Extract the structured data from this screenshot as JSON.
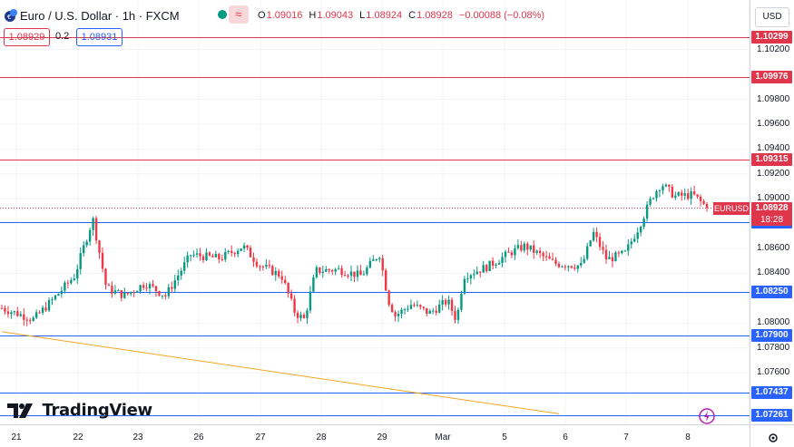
{
  "header": {
    "title": "Euro / U.S. Dollar · 1h · FXCM",
    "ohlc": [
      {
        "label": "O",
        "value": "1.09016"
      },
      {
        "label": "H",
        "value": "1.09043"
      },
      {
        "label": "L",
        "value": "1.08924"
      },
      {
        "label": "C",
        "value": "1.08928"
      },
      {
        "label": "",
        "value": "−0.00088 (−0.08%)"
      }
    ],
    "bid": "1.08929",
    "spread": "0.2",
    "ask": "1.08931",
    "wave_icon": "≈",
    "currency": "USD"
  },
  "price_axis": {
    "ticks": [
      "1.10200",
      "1.09800",
      "1.09600",
      "1.09400",
      "1.09200",
      "1.09000",
      "1.08600",
      "1.08400",
      "1.08000",
      "1.07800",
      "1.07600"
    ]
  },
  "levels": [
    {
      "price": "1.10299",
      "kind": "resistance",
      "color": "#e0364c"
    },
    {
      "price": "1.09976",
      "kind": "resistance",
      "color": "#e0364c"
    },
    {
      "price": "1.09315",
      "kind": "resistance",
      "color": "#e0364c"
    },
    {
      "price": "1.08810",
      "kind": "support",
      "color": "#2962ff"
    },
    {
      "price": "1.08250",
      "kind": "support",
      "color": "#2962ff"
    },
    {
      "price": "1.07900",
      "kind": "support",
      "color": "#2962ff"
    },
    {
      "price": "1.07437",
      "kind": "support",
      "color": "#2962ff"
    },
    {
      "price": "1.07261",
      "kind": "support",
      "color": "#2962ff"
    }
  ],
  "current": {
    "symbol": "EURUSD",
    "price": "1.08928",
    "countdown": "18:28"
  },
  "time_axis": [
    "21",
    "22",
    "23",
    "26",
    "27",
    "28",
    "29",
    "Mar",
    "5",
    "6",
    "7",
    "8"
  ],
  "branding": {
    "logo_text": "TradingView"
  },
  "colors": {
    "up": "#089981",
    "down": "#f23645",
    "resistance": "#e0364c",
    "support": "#2962ff",
    "trendline": "#f5a623"
  },
  "chart_data": {
    "type": "candlestick",
    "symbol": "EURUSD",
    "timeframe": "1h",
    "x_labels": [
      "21",
      "22",
      "23",
      "26",
      "27",
      "28",
      "29",
      "Mar",
      "5",
      "6",
      "7",
      "8"
    ],
    "ylim": [
      1.0718,
      1.1045
    ],
    "waypoints": [
      {
        "t": 0,
        "p": 1.0812
      },
      {
        "t": 1.4,
        "p": 1.0803
      },
      {
        "t": 2.2,
        "p": 1.0818
      },
      {
        "t": 3.2,
        "p": 1.0838
      },
      {
        "t": 4.0,
        "p": 1.0884
      },
      {
        "t": 4.6,
        "p": 1.0828
      },
      {
        "t": 5.4,
        "p": 1.0822
      },
      {
        "t": 6.3,
        "p": 1.0832
      },
      {
        "t": 7.2,
        "p": 1.0822
      },
      {
        "t": 8.3,
        "p": 1.0855
      },
      {
        "t": 9.6,
        "p": 1.0852
      },
      {
        "t": 10.6,
        "p": 1.0862
      },
      {
        "t": 11.3,
        "p": 1.0847
      },
      {
        "t": 12.3,
        "p": 1.0838
      },
      {
        "t": 12.9,
        "p": 1.0808
      },
      {
        "t": 13.3,
        "p": 1.0803
      },
      {
        "t": 13.8,
        "p": 1.0842
      },
      {
        "t": 14.8,
        "p": 1.0843
      },
      {
        "t": 15.8,
        "p": 1.0838
      },
      {
        "t": 16.6,
        "p": 1.0856
      },
      {
        "t": 17.0,
        "p": 1.0818
      },
      {
        "t": 17.3,
        "p": 1.0806
      },
      {
        "t": 18.0,
        "p": 1.0815
      },
      {
        "t": 18.8,
        "p": 1.0808
      },
      {
        "t": 19.6,
        "p": 1.0818
      },
      {
        "t": 20.0,
        "p": 1.0802
      },
      {
        "t": 20.3,
        "p": 1.0838
      },
      {
        "t": 21.3,
        "p": 1.0845
      },
      {
        "t": 22.4,
        "p": 1.0857
      },
      {
        "t": 23.0,
        "p": 1.0862
      },
      {
        "t": 24.3,
        "p": 1.0848
      },
      {
        "t": 25.5,
        "p": 1.0846
      },
      {
        "t": 26.0,
        "p": 1.0873
      },
      {
        "t": 26.6,
        "p": 1.0851
      },
      {
        "t": 27.4,
        "p": 1.0856
      },
      {
        "t": 28.0,
        "p": 1.0877
      },
      {
        "t": 28.6,
        "p": 1.0902
      },
      {
        "t": 29.0,
        "p": 1.0912
      },
      {
        "t": 29.6,
        "p": 1.0902
      },
      {
        "t": 30.4,
        "p": 1.0903
      },
      {
        "t": 31.0,
        "p": 1.0893
      }
    ],
    "levels": [
      1.10299,
      1.09976,
      1.09315,
      1.0881,
      1.0825,
      1.079,
      1.07437,
      1.07261
    ],
    "trendline": [
      {
        "t": 0,
        "p": 1.0793
      },
      {
        "t": 24.5,
        "p": 1.0727
      }
    ],
    "last": 1.08928
  }
}
